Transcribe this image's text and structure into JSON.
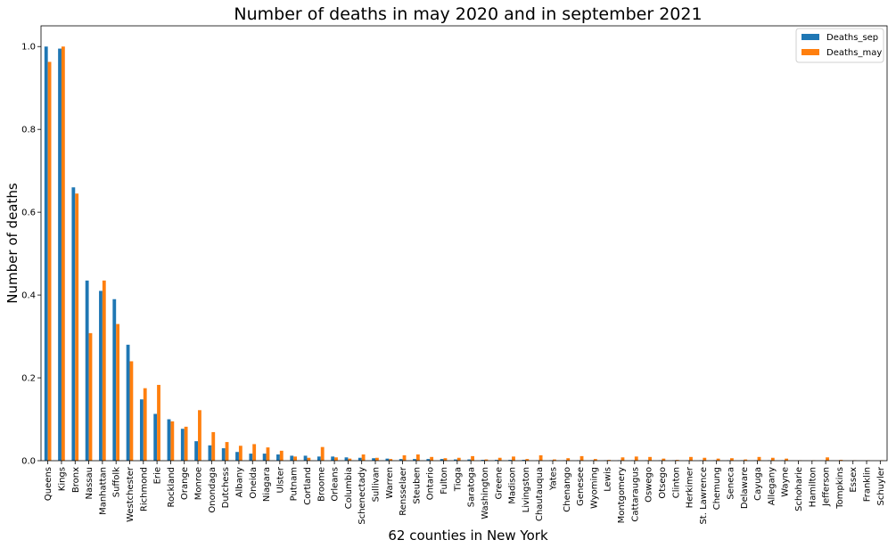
{
  "chart_data": {
    "type": "bar",
    "title": "Number of deaths in may 2020 and in september 2021",
    "xlabel": "62 counties in New York",
    "ylabel": "Number of deaths",
    "ylim": [
      0,
      1.05
    ],
    "yticks": [
      "0.0",
      "0.2",
      "0.4",
      "0.6",
      "0.8",
      "1.0"
    ],
    "legend_position": "top-right",
    "grid": false,
    "categories": [
      "Queens",
      "Kings",
      "Bronx",
      "Nassau",
      "Manhattan",
      "Suffolk",
      "Westchester",
      "Richmond",
      "Erie",
      "Rockland",
      "Orange",
      "Monroe",
      "Onondaga",
      "Dutchess",
      "Albany",
      "Oneida",
      "Niagara",
      "Ulster",
      "Putnam",
      "Cortland",
      "Broome",
      "Orleans",
      "Columbia",
      "Schenectady",
      "Sullivan",
      "Warren",
      "Rensselaer",
      "Steuben",
      "Ontario",
      "Fulton",
      "Tioga",
      "Saratoga",
      "Washington",
      "Greene",
      "Madison",
      "Livingston",
      "Chautauqua",
      "Yates",
      "Chenango",
      "Genesee",
      "Wyoming",
      "Lewis",
      "Montgomery",
      "Cattaraugus",
      "Oswego",
      "Otsego",
      "Clinton",
      "Herkimer",
      "St. Lawrence",
      "Chemung",
      "Seneca",
      "Delaware",
      "Cayuga",
      "Allegany",
      "Wayne",
      "Schoharie",
      "Hamilton",
      "Jefferson",
      "Tompkins",
      "Essex",
      "Franklin",
      "Schuyler"
    ],
    "series": [
      {
        "name": "Deaths_sep",
        "color": "#1f77b4",
        "values": [
          1.0,
          0.995,
          0.66,
          0.435,
          0.41,
          0.39,
          0.28,
          0.148,
          0.113,
          0.1,
          0.077,
          0.047,
          0.037,
          0.03,
          0.021,
          0.017,
          0.017,
          0.015,
          0.012,
          0.012,
          0.01,
          0.01,
          0.008,
          0.007,
          0.006,
          0.005,
          0.004,
          0.004,
          0.004,
          0.004,
          0.003,
          0.003,
          0.002,
          0.002,
          0.002,
          0.002,
          0.001,
          0.001,
          0.001,
          0.001,
          0.001,
          0.001,
          0.001,
          0.001,
          0.001,
          0.001,
          0.001,
          0.001,
          0.001,
          0.001,
          0.001,
          0.001,
          0.001,
          0.001,
          0.001,
          0.0,
          0.0,
          0.0,
          0.0,
          0.0,
          0.0,
          0.0
        ]
      },
      {
        "name": "Deaths_may",
        "color": "#ff7f0e",
        "values": [
          0.963,
          1.0,
          0.645,
          0.308,
          0.435,
          0.33,
          0.24,
          0.175,
          0.183,
          0.095,
          0.082,
          0.122,
          0.069,
          0.045,
          0.036,
          0.04,
          0.032,
          0.024,
          0.01,
          0.007,
          0.033,
          0.008,
          0.005,
          0.015,
          0.007,
          0.004,
          0.013,
          0.015,
          0.009,
          0.006,
          0.007,
          0.011,
          0.003,
          0.007,
          0.01,
          0.004,
          0.013,
          0.003,
          0.006,
          0.011,
          0.004,
          0.002,
          0.008,
          0.01,
          0.009,
          0.005,
          0.002,
          0.009,
          0.007,
          0.005,
          0.006,
          0.003,
          0.009,
          0.007,
          0.005,
          0.001,
          0.001,
          0.008,
          0.002,
          0.001,
          0.001,
          0.001
        ]
      }
    ]
  }
}
